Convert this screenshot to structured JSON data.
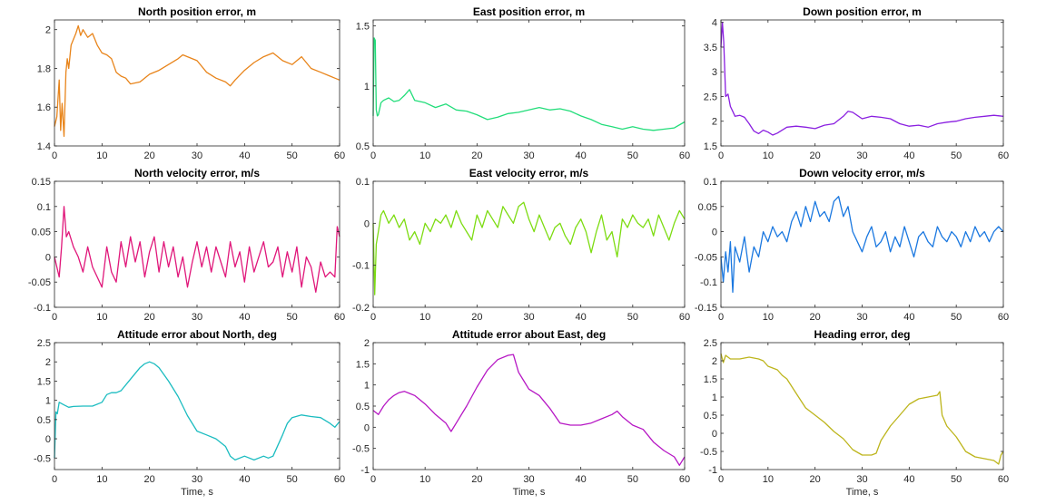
{
  "chart_data": [
    {
      "type": "line",
      "title": "North position error, m",
      "xlabel": "",
      "color": "#e8841a",
      "xlim": [
        0,
        60
      ],
      "ylim": [
        1.4,
        2.05
      ],
      "xticks": [
        0,
        10,
        20,
        30,
        40,
        50,
        60
      ],
      "yticks": [
        1.4,
        1.6,
        1.8,
        2
      ],
      "ytick_labels": [
        "1.4",
        "1.6",
        "1.8",
        "2"
      ],
      "x": [
        0,
        0.5,
        1,
        1.3,
        1.6,
        2,
        2.4,
        2.7,
        3,
        3.5,
        4,
        4.5,
        5,
        5.5,
        6,
        7,
        8,
        9,
        10,
        11,
        12,
        13,
        14,
        15,
        16,
        18,
        20,
        22,
        24,
        26,
        27,
        28,
        30,
        32,
        34,
        36,
        37,
        38,
        40,
        42,
        44,
        46,
        48,
        50,
        52,
        54,
        56,
        58,
        59,
        60
      ],
      "y": [
        1.5,
        1.55,
        1.74,
        1.48,
        1.62,
        1.45,
        1.78,
        1.85,
        1.8,
        1.92,
        1.95,
        1.98,
        2.02,
        1.97,
        2.0,
        1.96,
        1.98,
        1.92,
        1.88,
        1.87,
        1.85,
        1.78,
        1.76,
        1.75,
        1.72,
        1.73,
        1.77,
        1.79,
        1.82,
        1.85,
        1.87,
        1.86,
        1.84,
        1.78,
        1.75,
        1.73,
        1.71,
        1.74,
        1.79,
        1.83,
        1.86,
        1.88,
        1.84,
        1.82,
        1.86,
        1.8,
        1.78,
        1.76,
        1.75,
        1.74
      ]
    },
    {
      "type": "line",
      "title": "East position error, m",
      "xlabel": "",
      "color": "#22dd7a",
      "xlim": [
        0,
        60
      ],
      "ylim": [
        0.5,
        1.55
      ],
      "xticks": [
        0,
        10,
        20,
        30,
        40,
        50,
        60
      ],
      "yticks": [
        0.5,
        1,
        1.5
      ],
      "ytick_labels": [
        "0.5",
        "1",
        "1.5"
      ],
      "x": [
        0,
        0.2,
        0.4,
        0.6,
        0.8,
        1,
        1.5,
        2,
        3,
        4,
        5,
        6,
        7,
        8,
        10,
        12,
        14,
        16,
        18,
        20,
        22,
        24,
        26,
        28,
        30,
        32,
        34,
        36,
        38,
        40,
        42,
        44,
        46,
        48,
        50,
        52,
        54,
        56,
        58,
        60
      ],
      "y": [
        0.75,
        1.4,
        1.38,
        0.8,
        0.75,
        0.76,
        0.86,
        0.88,
        0.9,
        0.87,
        0.88,
        0.92,
        0.97,
        0.88,
        0.86,
        0.82,
        0.85,
        0.8,
        0.79,
        0.76,
        0.72,
        0.74,
        0.77,
        0.78,
        0.8,
        0.82,
        0.8,
        0.81,
        0.79,
        0.75,
        0.72,
        0.68,
        0.66,
        0.64,
        0.66,
        0.64,
        0.63,
        0.64,
        0.65,
        0.7
      ]
    },
    {
      "type": "line",
      "title": "Down position error, m",
      "xlabel": "",
      "color": "#8a1fe0",
      "xlim": [
        0,
        60
      ],
      "ylim": [
        1.5,
        4.05
      ],
      "xticks": [
        0,
        10,
        20,
        30,
        40,
        50,
        60
      ],
      "yticks": [
        1.5,
        2,
        2.5,
        3,
        3.5,
        4
      ],
      "ytick_labels": [
        "1.5",
        "2",
        "2.5",
        "3",
        "3.5",
        "4"
      ],
      "x": [
        0,
        0.3,
        0.6,
        1,
        1.5,
        2,
        2.5,
        3,
        4,
        5,
        6,
        7,
        8,
        9,
        10,
        11,
        12,
        14,
        16,
        18,
        20,
        22,
        24,
        26,
        27,
        28,
        30,
        32,
        34,
        36,
        38,
        40,
        42,
        44,
        46,
        48,
        50,
        52,
        54,
        56,
        58,
        60
      ],
      "y": [
        3.5,
        4.0,
        3.6,
        2.5,
        2.55,
        2.3,
        2.2,
        2.1,
        2.12,
        2.08,
        1.95,
        1.8,
        1.75,
        1.82,
        1.78,
        1.72,
        1.76,
        1.88,
        1.9,
        1.88,
        1.85,
        1.92,
        1.95,
        2.1,
        2.2,
        2.18,
        2.05,
        2.1,
        2.08,
        2.05,
        1.95,
        1.9,
        1.92,
        1.88,
        1.95,
        1.98,
        2.0,
        2.05,
        2.08,
        2.1,
        2.12,
        2.1
      ]
    },
    {
      "type": "line",
      "title": "North velocity error, m/s",
      "xlabel": "",
      "color": "#e0177a",
      "xlim": [
        0,
        60
      ],
      "ylim": [
        -0.1,
        0.15
      ],
      "xticks": [
        0,
        10,
        20,
        30,
        40,
        50,
        60
      ],
      "yticks": [
        -0.1,
        -0.05,
        0,
        0.05,
        0.1,
        0.15
      ],
      "ytick_labels": [
        "-0.1",
        "-0.05",
        "0",
        "0.05",
        "0.1",
        "0.15"
      ],
      "x": [
        0,
        0.5,
        1,
        1.5,
        2,
        2.5,
        3,
        4,
        5,
        6,
        7,
        8,
        9,
        10,
        11,
        12,
        13,
        14,
        15,
        16,
        17,
        18,
        19,
        20,
        21,
        22,
        23,
        24,
        25,
        26,
        27,
        28,
        29,
        30,
        31,
        32,
        33,
        34,
        35,
        36,
        37,
        38,
        39,
        40,
        41,
        42,
        43,
        44,
        45,
        46,
        47,
        48,
        49,
        50,
        51,
        52,
        53,
        54,
        55,
        56,
        57,
        58,
        59,
        59.5,
        60
      ],
      "y": [
        0.0,
        -0.02,
        -0.04,
        0.02,
        0.1,
        0.04,
        0.05,
        0.02,
        0.0,
        -0.03,
        0.02,
        -0.02,
        -0.04,
        -0.06,
        0.02,
        -0.03,
        -0.05,
        0.03,
        -0.02,
        0.04,
        -0.01,
        0.03,
        -0.04,
        0.01,
        0.04,
        -0.03,
        0.03,
        -0.02,
        0.02,
        -0.04,
        0.0,
        -0.06,
        -0.01,
        0.03,
        -0.02,
        0.02,
        -0.03,
        0.02,
        -0.01,
        -0.04,
        0.03,
        -0.02,
        0.01,
        -0.05,
        0.02,
        -0.03,
        0.0,
        0.03,
        -0.02,
        -0.01,
        0.02,
        -0.04,
        0.01,
        -0.03,
        0.02,
        -0.06,
        0.0,
        -0.02,
        -0.07,
        -0.01,
        -0.04,
        -0.03,
        -0.04,
        0.06,
        0.04
      ]
    },
    {
      "type": "line",
      "title": "East velocity error, m/s",
      "xlabel": "",
      "color": "#7ddc12",
      "xlim": [
        0,
        60
      ],
      "ylim": [
        -0.2,
        0.1
      ],
      "xticks": [
        0,
        10,
        20,
        30,
        40,
        50,
        60
      ],
      "yticks": [
        -0.2,
        -0.1,
        0,
        0.1
      ],
      "ytick_labels": [
        "-0.2",
        "-0.1",
        "0",
        "0.1"
      ],
      "x": [
        0,
        0.3,
        0.6,
        1,
        1.5,
        2,
        3,
        4,
        5,
        6,
        7,
        8,
        9,
        10,
        11,
        12,
        13,
        14,
        15,
        16,
        17,
        18,
        19,
        20,
        21,
        22,
        23,
        24,
        25,
        26,
        27,
        28,
        29,
        30,
        31,
        32,
        33,
        34,
        35,
        36,
        37,
        38,
        39,
        40,
        41,
        42,
        43,
        44,
        45,
        46,
        47,
        48,
        49,
        50,
        51,
        52,
        53,
        54,
        55,
        56,
        57,
        58,
        59,
        60
      ],
      "y": [
        0.0,
        -0.17,
        -0.05,
        -0.02,
        0.02,
        0.03,
        0.0,
        0.02,
        -0.01,
        0.01,
        -0.04,
        -0.02,
        -0.05,
        0.0,
        -0.02,
        0.01,
        0.0,
        0.02,
        -0.01,
        0.03,
        0.0,
        -0.02,
        -0.04,
        0.02,
        -0.01,
        0.03,
        0.01,
        -0.01,
        0.04,
        0.02,
        0.0,
        0.04,
        0.05,
        0.01,
        -0.02,
        0.02,
        -0.01,
        -0.04,
        -0.01,
        0.0,
        -0.03,
        -0.05,
        -0.01,
        0.01,
        -0.02,
        -0.07,
        -0.02,
        0.02,
        -0.04,
        -0.02,
        -0.08,
        0.01,
        -0.01,
        0.02,
        0.0,
        -0.01,
        0.01,
        -0.03,
        0.02,
        -0.01,
        -0.04,
        0.0,
        0.03,
        0.01
      ]
    },
    {
      "type": "line",
      "title": "Down velocity error, m/s",
      "xlabel": "",
      "color": "#1b78e0",
      "xlim": [
        0,
        60
      ],
      "ylim": [
        -0.15,
        0.1
      ],
      "xticks": [
        0,
        10,
        20,
        30,
        40,
        50,
        60
      ],
      "yticks": [
        -0.15,
        -0.1,
        -0.05,
        0,
        0.05,
        0.1
      ],
      "ytick_labels": [
        "-0.15",
        "-0.1",
        "-0.05",
        "0",
        "0.05",
        "0.1"
      ],
      "x": [
        0,
        0.5,
        1,
        1.5,
        2,
        2.5,
        3,
        4,
        5,
        6,
        7,
        8,
        9,
        10,
        11,
        12,
        13,
        14,
        15,
        16,
        17,
        18,
        19,
        20,
        21,
        22,
        23,
        24,
        25,
        26,
        27,
        28,
        29,
        30,
        31,
        32,
        33,
        34,
        35,
        36,
        37,
        38,
        39,
        40,
        41,
        42,
        43,
        44,
        45,
        46,
        47,
        48,
        49,
        50,
        51,
        52,
        53,
        54,
        55,
        56,
        57,
        58,
        59,
        60
      ],
      "y": [
        -0.05,
        -0.1,
        -0.04,
        -0.08,
        -0.02,
        -0.12,
        -0.03,
        -0.06,
        -0.01,
        -0.08,
        -0.03,
        -0.05,
        0.0,
        -0.02,
        0.01,
        -0.01,
        0.0,
        -0.02,
        0.02,
        0.04,
        0.01,
        0.05,
        0.02,
        0.06,
        0.03,
        0.04,
        0.02,
        0.06,
        0.07,
        0.03,
        0.05,
        0.0,
        -0.02,
        -0.04,
        -0.01,
        0.01,
        -0.03,
        -0.02,
        0.0,
        -0.04,
        -0.01,
        -0.03,
        0.01,
        -0.02,
        -0.05,
        -0.01,
        0.0,
        -0.02,
        -0.03,
        0.01,
        -0.01,
        -0.02,
        0.0,
        -0.01,
        -0.03,
        0.0,
        -0.02,
        0.01,
        -0.01,
        0.0,
        -0.02,
        0.0,
        0.01,
        0.0
      ]
    },
    {
      "type": "line",
      "title": "Attitude error about North, deg",
      "xlabel": "Time, s",
      "color": "#1bbcc0",
      "xlim": [
        0,
        60
      ],
      "ylim": [
        -0.8,
        2.5
      ],
      "xticks": [
        0,
        10,
        20,
        30,
        40,
        50,
        60
      ],
      "yticks": [
        -0.5,
        0,
        0.5,
        1,
        1.5,
        2,
        2.5
      ],
      "ytick_labels": [
        "-0.5",
        "0",
        "0.5",
        "1",
        "1.5",
        "2",
        "2.5"
      ],
      "x": [
        0,
        0.3,
        0.6,
        1,
        2,
        3,
        4,
        6,
        8,
        10,
        11,
        12,
        13,
        14,
        16,
        18,
        19,
        20,
        21,
        22,
        24,
        26,
        28,
        30,
        32,
        34,
        36,
        37,
        38,
        40,
        42,
        44,
        45,
        46,
        48,
        49,
        50,
        52,
        54,
        56,
        58,
        59,
        60
      ],
      "y": [
        -0.5,
        0.7,
        0.65,
        0.95,
        0.88,
        0.82,
        0.84,
        0.85,
        0.85,
        0.95,
        1.15,
        1.2,
        1.2,
        1.25,
        1.55,
        1.85,
        1.95,
        2.0,
        1.95,
        1.85,
        1.5,
        1.1,
        0.6,
        0.2,
        0.1,
        0.0,
        -0.2,
        -0.45,
        -0.55,
        -0.45,
        -0.55,
        -0.45,
        -0.5,
        -0.45,
        0.1,
        0.4,
        0.55,
        0.62,
        0.58,
        0.55,
        0.4,
        0.3,
        0.45
      ]
    },
    {
      "type": "line",
      "title": "Attitude error about East, deg",
      "xlabel": "Time, s",
      "color": "#b617c4",
      "xlim": [
        0,
        60
      ],
      "ylim": [
        -1,
        2
      ],
      "xticks": [
        0,
        10,
        20,
        30,
        40,
        50,
        60
      ],
      "yticks": [
        -1,
        -0.5,
        0,
        0.5,
        1,
        1.5,
        2
      ],
      "ytick_labels": [
        "-1",
        "-0.5",
        "0",
        "0.5",
        "1",
        "1.5",
        "2"
      ],
      "x": [
        0,
        1,
        2,
        3,
        4,
        5,
        6,
        7,
        8,
        10,
        12,
        14,
        15,
        16,
        18,
        20,
        22,
        24,
        26,
        27,
        28,
        29,
        30,
        32,
        34,
        36,
        38,
        40,
        42,
        44,
        46,
        47,
        48,
        50,
        52,
        54,
        56,
        58,
        59,
        60
      ],
      "y": [
        0.4,
        0.3,
        0.5,
        0.65,
        0.75,
        0.82,
        0.85,
        0.8,
        0.75,
        0.55,
        0.3,
        0.1,
        -0.1,
        0.1,
        0.5,
        0.95,
        1.35,
        1.6,
        1.7,
        1.72,
        1.3,
        1.1,
        0.9,
        0.75,
        0.45,
        0.1,
        0.05,
        0.05,
        0.1,
        0.2,
        0.3,
        0.38,
        0.25,
        0.05,
        -0.05,
        -0.35,
        -0.55,
        -0.7,
        -0.9,
        -0.7
      ]
    },
    {
      "type": "line",
      "title": "Heading error, deg",
      "xlabel": "Time, s",
      "color": "#bdb51c",
      "xlim": [
        0,
        60
      ],
      "ylim": [
        -1,
        2.5
      ],
      "xticks": [
        0,
        10,
        20,
        30,
        40,
        50,
        60
      ],
      "yticks": [
        -1,
        -0.5,
        0,
        0.5,
        1,
        1.5,
        2,
        2.5
      ],
      "ytick_labels": [
        "-1",
        "-0.5",
        "0",
        "0.5",
        "1",
        "1.5",
        "2",
        "2.5"
      ],
      "x": [
        0,
        0.5,
        1,
        2,
        4,
        6,
        8,
        9,
        10,
        11,
        12,
        13,
        14,
        16,
        18,
        20,
        22,
        24,
        26,
        28,
        30,
        32,
        33,
        34,
        36,
        38,
        40,
        42,
        44,
        46,
        46.5,
        47,
        48,
        50,
        52,
        54,
        56,
        58,
        59,
        59.5,
        60
      ],
      "y": [
        2.2,
        1.95,
        2.15,
        2.05,
        2.05,
        2.1,
        2.05,
        2.0,
        1.85,
        1.8,
        1.75,
        1.6,
        1.5,
        1.1,
        0.7,
        0.5,
        0.3,
        0.05,
        -0.15,
        -0.45,
        -0.6,
        -0.6,
        -0.55,
        -0.2,
        0.2,
        0.5,
        0.8,
        0.95,
        1.0,
        1.05,
        1.15,
        0.5,
        0.2,
        -0.1,
        -0.5,
        -0.65,
        -0.7,
        -0.75,
        -0.85,
        -0.6,
        -0.5
      ]
    }
  ]
}
